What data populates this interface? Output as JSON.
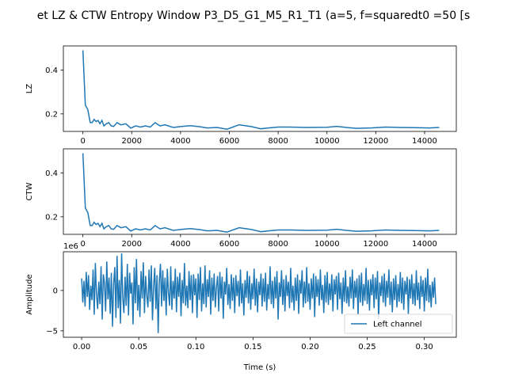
{
  "figure": {
    "title": "et LZ & CTW Entropy Window P3_D5_G1_M5_R1_T1 (a=5, f=squaredt0 =50 [s"
  },
  "chart_data": [
    {
      "type": "line",
      "ylabel": "LZ",
      "xlim": [
        -800,
        15300
      ],
      "ylim": [
        0.12,
        0.51
      ],
      "xticks": [
        "0",
        "2000",
        "4000",
        "6000",
        "8000",
        "10000",
        "12000",
        "14000"
      ],
      "yticks": [
        "0.2",
        "0.4"
      ],
      "series": [
        {
          "color": "#1f77b4",
          "x": [
            0,
            100,
            200,
            300,
            380,
            460,
            540,
            620,
            700,
            780,
            860,
            960,
            1060,
            1160,
            1260,
            1400,
            1560,
            1760,
            1960,
            2160,
            2360,
            2560,
            2760,
            2960,
            3160,
            3360,
            3700,
            4000,
            4400,
            4800,
            5100,
            5500,
            5900,
            6400,
            6900,
            7300,
            7600,
            8000,
            8500,
            9200,
            10000,
            10400,
            10800,
            11200,
            11800,
            12400,
            13000,
            13600,
            14200,
            14600
          ],
          "values": [
            0.49,
            0.24,
            0.22,
            0.16,
            0.16,
            0.175,
            0.165,
            0.17,
            0.155,
            0.17,
            0.145,
            0.155,
            0.16,
            0.145,
            0.143,
            0.16,
            0.15,
            0.155,
            0.135,
            0.145,
            0.14,
            0.145,
            0.14,
            0.16,
            0.145,
            0.15,
            0.138,
            0.142,
            0.146,
            0.141,
            0.136,
            0.138,
            0.13,
            0.15,
            0.142,
            0.132,
            0.136,
            0.14,
            0.14,
            0.138,
            0.139,
            0.143,
            0.138,
            0.134,
            0.136,
            0.14,
            0.138,
            0.137,
            0.136,
            0.138
          ]
        }
      ]
    },
    {
      "type": "line",
      "ylabel": "CTW",
      "xlim": [
        -800,
        15300
      ],
      "ylim": [
        0.12,
        0.51
      ],
      "xticks": [
        "0",
        "2000",
        "4000",
        "6000",
        "8000",
        "10000",
        "12000",
        "14000"
      ],
      "yticks": [
        "0.2",
        "0.4"
      ],
      "series": [
        {
          "color": "#1f77b4",
          "x": [
            0,
            100,
            200,
            300,
            380,
            460,
            540,
            620,
            700,
            780,
            860,
            960,
            1060,
            1160,
            1260,
            1400,
            1560,
            1760,
            1960,
            2160,
            2360,
            2560,
            2760,
            2960,
            3160,
            3360,
            3700,
            4000,
            4400,
            4800,
            5100,
            5500,
            5900,
            6400,
            6900,
            7300,
            7600,
            8000,
            8500,
            9200,
            10000,
            10400,
            10800,
            11200,
            11800,
            12400,
            13000,
            13600,
            14200,
            14600
          ],
          "values": [
            0.49,
            0.24,
            0.22,
            0.16,
            0.16,
            0.175,
            0.165,
            0.17,
            0.155,
            0.17,
            0.145,
            0.155,
            0.16,
            0.145,
            0.143,
            0.16,
            0.15,
            0.155,
            0.135,
            0.145,
            0.14,
            0.145,
            0.14,
            0.16,
            0.145,
            0.15,
            0.138,
            0.142,
            0.146,
            0.141,
            0.136,
            0.138,
            0.13,
            0.15,
            0.142,
            0.132,
            0.136,
            0.14,
            0.14,
            0.138,
            0.139,
            0.143,
            0.138,
            0.134,
            0.136,
            0.14,
            0.138,
            0.137,
            0.136,
            0.138
          ]
        }
      ]
    },
    {
      "type": "line",
      "xlabel": "Time (s)",
      "ylabel": "Amplitude",
      "offset_label": "1e6",
      "xlim": [
        -0.016,
        0.328
      ],
      "ylim": [
        -5.8,
        4.8
      ],
      "xticks": [
        "0.00",
        "0.05",
        "0.10",
        "0.15",
        "0.20",
        "0.25",
        "0.30"
      ],
      "yticks": [
        "−5",
        "0"
      ],
      "legend": {
        "position": "lower-right",
        "entries": [
          "Left channel"
        ]
      },
      "series": [
        {
          "name": "Left channel",
          "color": "#1f77b4",
          "x_start": 0,
          "x_step": 0.001,
          "values": [
            1.5,
            -1.5,
            1.2,
            -2.0,
            2.3,
            -0.8,
            1.9,
            -2.4,
            0.6,
            -1.2,
            2.6,
            -3.0,
            3.4,
            -0.5,
            -2.3,
            1.1,
            -1.7,
            3.0,
            -3.6,
            2.0,
            0.9,
            -2.6,
            3.6,
            -1.1,
            1.6,
            -2.9,
            2.2,
            -4.5,
            0.8,
            2.9,
            -3.4,
            4.3,
            -2.2,
            1.3,
            -4.1,
            4.6,
            -0.9,
            -2.8,
            1.7,
            -1.9,
            3.3,
            -3.1,
            2.2,
            -0.4,
            1.0,
            -4.2,
            2.9,
            -1.6,
            3.9,
            -2.5,
            0.7,
            -3.3,
            2.4,
            -1.0,
            3.5,
            -2.8,
            1.8,
            -0.6,
            -2.1,
            2.6,
            -1.4,
            3.1,
            -3.7,
            0.5,
            2.8,
            -2.3,
            1.9,
            -5.3,
            1.2,
            3.3,
            -2.0,
            2.5,
            -1.3,
            1.6,
            -3.1,
            2.7,
            -0.3,
            -1.9,
            3.0,
            -2.4,
            1.2,
            -1.0,
            2.7,
            -2.7,
            1.7,
            -0.8,
            2.2,
            -3.2,
            1.3,
            -1.6,
            3.4,
            -1.9,
            0.6,
            -2.2,
            2.4,
            -1.2,
            1.9,
            -2.8,
            2.0,
            -0.6,
            1.5,
            -3.4,
            2.1,
            -1.2,
            2.9,
            -2.6,
            0.9,
            -1.7,
            3.1,
            -2.1,
            1.4,
            -0.8,
            2.5,
            -3.0,
            1.6,
            -1.3,
            2.1,
            -2.1,
            0.4,
            1.8,
            -2.6,
            2.3,
            -1.0,
            1.7,
            -3.5,
            1.1,
            -0.5,
            2.8,
            -1.8,
            0.8,
            -2.3,
            2.0,
            -1.3,
            1.6,
            -2.8,
            1.9,
            -0.7,
            1.2,
            -2.0,
            2.6,
            -1.6,
            0.9,
            -3.1,
            1.3,
            -0.9,
            2.4,
            -1.6,
            1.8,
            -2.4,
            0.9,
            -1.1,
            2.7,
            -1.9,
            1.5,
            -2.7,
            1.1,
            -0.6,
            2.1,
            -2.0,
            1.5,
            -1.4,
            2.2,
            -2.5,
            0.8,
            -1.1,
            3.0,
            -1.7,
            1.2,
            -2.2,
            1.7,
            -1.0,
            2.4,
            -3.6,
            1.0,
            -0.8,
            2.5,
            -1.8,
            1.4,
            -2.6,
            1.9,
            -0.7,
            1.1,
            -2.2,
            2.8,
            -1.5,
            0.6,
            -2.5,
            1.6,
            -1.3,
            2.0,
            -2.9,
            1.3,
            -0.4,
            2.5,
            -2.1,
            1.1,
            -1.6,
            2.9,
            -1.4,
            0.9,
            -2.4,
            1.5,
            -1.0,
            2.1,
            -3.3,
            1.8,
            -0.8,
            1.4,
            -1.9,
            2.6,
            -1.2,
            0.7,
            -2.8,
            1.9,
            -1.5,
            2.3,
            -1.8,
            0.9,
            -1.2,
            2.0,
            -2.6,
            1.4,
            -0.5,
            1.8,
            -2.4,
            2.2,
            -1.1,
            1.0,
            -2.9,
            1.6,
            -1.4,
            2.5,
            -1.6,
            0.5,
            -2.0,
            1.7,
            -1.0,
            2.6,
            -2.3,
            1.2,
            -0.9,
            1.5,
            -3.0,
            1.9,
            -1.5,
            2.2,
            -1.9,
            0.8,
            -1.3,
            2.8,
            -1.7,
            1.3,
            -2.5,
            1.4,
            -0.6,
            2.0,
            -2.2,
            1.6,
            -1.1,
            2.4,
            -3.5,
            1.0,
            -0.7,
            1.8,
            -1.5,
            2.1,
            -2.0,
            1.2,
            -0.9,
            2.6,
            -1.8,
            1.1,
            -2.7,
            1.5,
            -1.2,
            1.9,
            -2.1,
            0.8,
            -1.4,
            2.3,
            -1.6,
            1.6,
            -2.4,
            1.2,
            -0.5,
            1.7,
            -2.9,
            1.4,
            -1.0,
            2.0,
            -1.7,
            0.9,
            -1.9,
            2.5,
            -1.2,
            1.0,
            -2.3,
            1.8,
            -0.8,
            1.3,
            -2.6,
            1.6,
            -1.3,
            2.7,
            -1.5,
            0.7,
            -2.1,
            1.1,
            -0.9,
            1.6,
            -1.7
          ]
        }
      ]
    }
  ]
}
